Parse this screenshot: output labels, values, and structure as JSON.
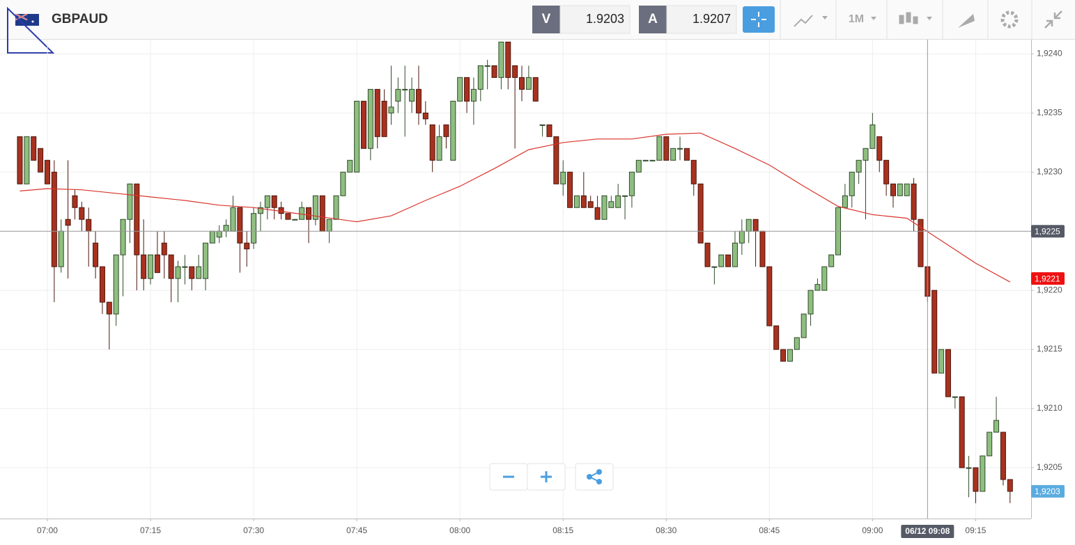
{
  "header": {
    "symbol": "GBPAUD",
    "bid_label": "V",
    "bid": 1.9203,
    "ask_label": "A",
    "ask": 1.9207,
    "timeframe": "1M"
  },
  "chart_data": {
    "type": "candlestick",
    "categories": [
      "06:56",
      "06:57",
      "06:58",
      "06:59",
      "07:00",
      "07:01",
      "07:02",
      "07:03",
      "07:04",
      "07:05",
      "07:06",
      "07:07",
      "07:08",
      "07:09",
      "07:10",
      "07:11",
      "07:12",
      "07:13",
      "07:14",
      "07:15",
      "07:16",
      "07:17",
      "07:18",
      "07:19",
      "07:20",
      "07:21",
      "07:22",
      "07:23",
      "07:24",
      "07:25",
      "07:26",
      "07:27",
      "07:28",
      "07:29",
      "07:30",
      "07:31",
      "07:32",
      "07:33",
      "07:34",
      "07:35",
      "07:36",
      "07:37",
      "07:38",
      "07:39",
      "07:40",
      "07:41",
      "07:42",
      "07:43",
      "07:44",
      "07:45",
      "07:46",
      "07:47",
      "07:48",
      "07:49",
      "07:50",
      "07:51",
      "07:52",
      "07:53",
      "07:54",
      "07:55",
      "07:56",
      "07:57",
      "07:58",
      "07:59",
      "08:00",
      "08:01",
      "08:02",
      "08:03",
      "08:04",
      "08:05",
      "08:06",
      "08:07",
      "08:08",
      "08:09",
      "08:10",
      "08:11",
      "08:12",
      "08:13",
      "08:14",
      "08:15",
      "08:16",
      "08:17",
      "08:18",
      "08:19",
      "08:20",
      "08:21",
      "08:22",
      "08:23",
      "08:24",
      "08:25",
      "08:26",
      "08:27",
      "08:28",
      "08:29",
      "08:30",
      "08:31",
      "08:32",
      "08:33",
      "08:34",
      "08:35",
      "08:36",
      "08:37",
      "08:38",
      "08:39",
      "08:40",
      "08:41",
      "08:42",
      "08:43",
      "08:44",
      "08:45",
      "08:46",
      "08:47",
      "08:48",
      "08:49",
      "08:50",
      "08:51",
      "08:52",
      "08:53",
      "08:54",
      "08:55",
      "08:56",
      "08:57",
      "08:58",
      "08:59",
      "09:00",
      "09:01",
      "09:02",
      "09:03",
      "09:04",
      "09:05",
      "09:06",
      "09:07",
      "09:08",
      "09:09",
      "09:10",
      "09:11",
      "09:12",
      "09:13",
      "09:14",
      "09:15",
      "09:16",
      "09:17",
      "09:18",
      "09:19",
      "09:20"
    ],
    "ohlc": [
      [
        1.9233,
        1.9233,
        1.9229,
        1.9229
      ],
      [
        1.9229,
        1.9233,
        1.9229,
        1.9233
      ],
      [
        1.9233,
        1.9233,
        1.9231,
        1.9231
      ],
      [
        1.9232,
        1.9232,
        1.923,
        1.923
      ],
      [
        1.9231,
        1.9231,
        1.9229,
        1.9229
      ],
      [
        1.923,
        1.9231,
        1.9219,
        1.9222
      ],
      [
        1.9222,
        1.9226,
        1.92215,
        1.9225
      ],
      [
        1.9226,
        1.9231,
        1.9221,
        1.92255
      ],
      [
        1.9228,
        1.92285,
        1.9226,
        1.9227
      ],
      [
        1.9227,
        1.92275,
        1.9225,
        1.9226
      ],
      [
        1.9226,
        1.9227,
        1.9222,
        1.9225
      ],
      [
        1.9224,
        1.9225,
        1.9221,
        1.9222
      ],
      [
        1.9222,
        1.9222,
        1.9218,
        1.9219
      ],
      [
        1.9219,
        1.9219,
        1.9215,
        1.9218
      ],
      [
        1.9218,
        1.9223,
        1.9217,
        1.9223
      ],
      [
        1.9223,
        1.9226,
        1.92195,
        1.9226
      ],
      [
        1.9226,
        1.9229,
        1.9224,
        1.9229
      ],
      [
        1.9229,
        1.9229,
        1.922,
        1.9223
      ],
      [
        1.9223,
        1.9226,
        1.922,
        1.9221
      ],
      [
        1.9221,
        1.9223,
        1.92205,
        1.9223
      ],
      [
        1.9223,
        1.9225,
        1.92215,
        1.92215
      ],
      [
        1.9224,
        1.9225,
        1.9221,
        1.9223
      ],
      [
        1.9223,
        1.9223,
        1.9219,
        1.9221
      ],
      [
        1.9221,
        1.92225,
        1.9219,
        1.9222
      ],
      [
        1.9222,
        1.9223,
        1.92205,
        1.9222
      ],
      [
        1.9222,
        1.9222,
        1.922,
        1.9221
      ],
      [
        1.9221,
        1.9223,
        1.9221,
        1.9222
      ],
      [
        1.9221,
        1.9224,
        1.922,
        1.9224
      ],
      [
        1.9224,
        1.9225,
        1.9224,
        1.9225
      ],
      [
        1.92245,
        1.92255,
        1.9224,
        1.9225
      ],
      [
        1.9225,
        1.9226,
        1.92245,
        1.92255
      ],
      [
        1.9225,
        1.9228,
        1.9225,
        1.9227
      ],
      [
        1.9227,
        1.9227,
        1.92215,
        1.9224
      ],
      [
        1.9224,
        1.9225,
        1.9222,
        1.92235
      ],
      [
        1.9224,
        1.9227,
        1.92235,
        1.92265
      ],
      [
        1.92265,
        1.92275,
        1.9225,
        1.9227
      ],
      [
        1.9227,
        1.9228,
        1.9226,
        1.9228
      ],
      [
        1.9228,
        1.9228,
        1.9226,
        1.9227
      ],
      [
        1.9227,
        1.92275,
        1.9226,
        1.92265
      ],
      [
        1.92265,
        1.92265,
        1.9226,
        1.9226
      ],
      [
        1.9226,
        1.9226,
        1.9226,
        1.9226
      ],
      [
        1.9226,
        1.92275,
        1.9226,
        1.9227
      ],
      [
        1.9227,
        1.9227,
        1.9224,
        1.9226
      ],
      [
        1.9226,
        1.9228,
        1.92255,
        1.9228
      ],
      [
        1.9228,
        1.9228,
        1.9225,
        1.9225
      ],
      [
        1.9225,
        1.9226,
        1.9224,
        1.9226
      ],
      [
        1.9226,
        1.9228,
        1.9226,
        1.9228
      ],
      [
        1.9228,
        1.923,
        1.9228,
        1.923
      ],
      [
        1.923,
        1.9231,
        1.923,
        1.9231
      ],
      [
        1.923,
        1.9236,
        1.923,
        1.9236
      ],
      [
        1.9236,
        1.9236,
        1.9232,
        1.9232
      ],
      [
        1.9232,
        1.9237,
        1.9231,
        1.9237
      ],
      [
        1.9237,
        1.9237,
        1.9232,
        1.9233
      ],
      [
        1.9236,
        1.9237,
        1.9233,
        1.9233
      ],
      [
        1.9235,
        1.9239,
        1.9234,
        1.92355
      ],
      [
        1.9236,
        1.9238,
        1.9235,
        1.9237
      ],
      [
        1.9237,
        1.9239,
        1.9233,
        1.9237
      ],
      [
        1.9236,
        1.9238,
        1.9235,
        1.9237
      ],
      [
        1.9237,
        1.9239,
        1.9234,
        1.9235
      ],
      [
        1.9235,
        1.9236,
        1.9234,
        1.92345
      ],
      [
        1.9234,
        1.9234,
        1.923,
        1.9231
      ],
      [
        1.9231,
        1.9234,
        1.9231,
        1.9233
      ],
      [
        1.9234,
        1.9234,
        1.9232,
        1.9233
      ],
      [
        1.9231,
        1.9236,
        1.9231,
        1.9236
      ],
      [
        1.9236,
        1.9238,
        1.9236,
        1.9238
      ],
      [
        1.9238,
        1.9238,
        1.9235,
        1.9236
      ],
      [
        1.9236,
        1.9238,
        1.9234,
        1.9237
      ],
      [
        1.9237,
        1.9239,
        1.9236,
        1.9239
      ],
      [
        1.9239,
        1.92395,
        1.9237,
        1.9239
      ],
      [
        1.9239,
        1.9239,
        1.9238,
        1.9238
      ],
      [
        1.9238,
        1.9241,
        1.9237,
        1.9241
      ],
      [
        1.9241,
        1.9241,
        1.9237,
        1.9238
      ],
      [
        1.9239,
        1.9239,
        1.9232,
        1.9238
      ],
      [
        1.9238,
        1.9239,
        1.9236,
        1.9237
      ],
      [
        1.9237,
        1.9239,
        1.9237,
        1.9238
      ],
      [
        1.9238,
        1.9238,
        1.9236,
        1.9236
      ],
      [
        1.9234,
        1.9234,
        1.9233,
        1.9234
      ],
      [
        1.9234,
        1.9234,
        1.9233,
        1.9233
      ],
      [
        1.9233,
        1.9233,
        1.9229,
        1.9229
      ],
      [
        1.9229,
        1.9231,
        1.9228,
        1.923
      ],
      [
        1.923,
        1.923,
        1.9227,
        1.9227
      ],
      [
        1.9227,
        1.9228,
        1.9227,
        1.9228
      ],
      [
        1.9228,
        1.923,
        1.9227,
        1.9227
      ],
      [
        1.92275,
        1.9228,
        1.9227,
        1.9227
      ],
      [
        1.9227,
        1.9228,
        1.9226,
        1.9226
      ],
      [
        1.9226,
        1.9228,
        1.9226,
        1.9228
      ],
      [
        1.9227,
        1.9228,
        1.9227,
        1.92275
      ],
      [
        1.9227,
        1.9229,
        1.9227,
        1.9228
      ],
      [
        1.9228,
        1.9228,
        1.9226,
        1.9228
      ],
      [
        1.9228,
        1.923,
        1.9227,
        1.923
      ],
      [
        1.923,
        1.9231,
        1.923,
        1.9231
      ],
      [
        1.9231,
        1.9231,
        1.9231,
        1.9231
      ],
      [
        1.9231,
        1.9231,
        1.9231,
        1.9231
      ],
      [
        1.9231,
        1.9233,
        1.9231,
        1.9233
      ],
      [
        1.9233,
        1.9233,
        1.9231,
        1.9231
      ],
      [
        1.9231,
        1.9232,
        1.9231,
        1.9232
      ],
      [
        1.9232,
        1.9233,
        1.9231,
        1.9232
      ],
      [
        1.9232,
        1.9232,
        1.9231,
        1.9231
      ],
      [
        1.9231,
        1.9231,
        1.9228,
        1.9229
      ],
      [
        1.9229,
        1.9229,
        1.9224,
        1.9224
      ],
      [
        1.9224,
        1.9224,
        1.9222,
        1.9222
      ],
      [
        1.9222,
        1.9222,
        1.92205,
        1.9222
      ],
      [
        1.9222,
        1.9223,
        1.9222,
        1.9223
      ],
      [
        1.9223,
        1.9223,
        1.9222,
        1.9222
      ],
      [
        1.9222,
        1.9225,
        1.9222,
        1.9224
      ],
      [
        1.9224,
        1.9226,
        1.9223,
        1.9225
      ],
      [
        1.9225,
        1.9226,
        1.9224,
        1.9226
      ],
      [
        1.9226,
        1.9226,
        1.9222,
        1.9225
      ],
      [
        1.9225,
        1.9225,
        1.9222,
        1.9222
      ],
      [
        1.9222,
        1.9222,
        1.9217,
        1.9217
      ],
      [
        1.9217,
        1.9217,
        1.9215,
        1.9215
      ],
      [
        1.9215,
        1.9215,
        1.9214,
        1.9214
      ],
      [
        1.9214,
        1.9215,
        1.9214,
        1.9215
      ],
      [
        1.9215,
        1.9216,
        1.9215,
        1.9216
      ],
      [
        1.9216,
        1.9218,
        1.9216,
        1.9218
      ],
      [
        1.9218,
        1.922,
        1.9217,
        1.922
      ],
      [
        1.922,
        1.9221,
        1.922,
        1.92205
      ],
      [
        1.922,
        1.9222,
        1.922,
        1.9222
      ],
      [
        1.9222,
        1.9223,
        1.9222,
        1.9223
      ],
      [
        1.9223,
        1.9227,
        1.9223,
        1.9227
      ],
      [
        1.9227,
        1.9229,
        1.9227,
        1.9228
      ],
      [
        1.9228,
        1.923,
        1.9227,
        1.923
      ],
      [
        1.923,
        1.9231,
        1.9229,
        1.9231
      ],
      [
        1.9231,
        1.9232,
        1.9226,
        1.9232
      ],
      [
        1.9232,
        1.9235,
        1.9232,
        1.9234
      ],
      [
        1.9233,
        1.9233,
        1.923,
        1.9231
      ],
      [
        1.9231,
        1.9231,
        1.9228,
        1.9229
      ],
      [
        1.9229,
        1.9229,
        1.9227,
        1.9228
      ],
      [
        1.9228,
        1.9229,
        1.9228,
        1.9229
      ],
      [
        1.9228,
        1.9229,
        1.9228,
        1.9229
      ],
      [
        1.9229,
        1.92295,
        1.9225,
        1.9226
      ],
      [
        1.9226,
        1.9226,
        1.9222,
        1.9222
      ],
      [
        1.9222,
        1.9222,
        1.9219,
        1.92195
      ],
      [
        1.922,
        1.922,
        1.9213,
        1.9213
      ],
      [
        1.9213,
        1.9215,
        1.9213,
        1.9215
      ],
      [
        1.9215,
        1.9215,
        1.9211,
        1.9211
      ],
      [
        1.9211,
        1.9211,
        1.921,
        1.9211
      ],
      [
        1.9211,
        1.9211,
        1.9205,
        1.9205
      ],
      [
        1.9205,
        1.9206,
        1.92025,
        1.9205
      ],
      [
        1.9205,
        1.9205,
        1.9202,
        1.9203
      ],
      [
        1.9203,
        1.9206,
        1.9203,
        1.9206
      ],
      [
        1.9206,
        1.9208,
        1.9206,
        1.9208
      ],
      [
        1.9208,
        1.9211,
        1.9208,
        1.9209
      ],
      [
        1.9208,
        1.9208,
        1.92035,
        1.9204
      ],
      [
        1.9204,
        1.9204,
        1.9202,
        1.9203
      ]
    ],
    "up_color": "#8fbf80",
    "down_color": "#a8321f",
    "ma": {
      "color": "#d9342b",
      "x": [
        "06:56",
        "07:00",
        "07:05",
        "07:10",
        "07:15",
        "07:20",
        "07:25",
        "07:30",
        "07:35",
        "07:40",
        "07:45",
        "07:50",
        "07:55",
        "08:00",
        "08:05",
        "08:10",
        "08:15",
        "08:20",
        "08:25",
        "08:30",
        "08:35",
        "08:40",
        "08:45",
        "08:50",
        "08:55",
        "09:00",
        "09:05",
        "09:10",
        "09:15",
        "09:20"
      ],
      "values": [
        1.92284,
        1.92286,
        1.92285,
        1.92282,
        1.92279,
        1.92276,
        1.92272,
        1.9227,
        1.92266,
        1.92262,
        1.92258,
        1.92263,
        1.92276,
        1.92288,
        1.92303,
        1.92319,
        1.92325,
        1.92328,
        1.92328,
        1.92332,
        1.92333,
        1.9232,
        1.92306,
        1.92288,
        1.92271,
        1.92264,
        1.92261,
        1.92242,
        1.92223,
        1.92207
      ]
    },
    "ylim": [
      1.92007,
      1.92412
    ],
    "yticks": [
      {
        "value": 1.9205,
        "label": "1,9205"
      },
      {
        "value": 1.921,
        "label": "1,9210"
      },
      {
        "value": 1.9215,
        "label": "1,9215"
      },
      {
        "value": 1.922,
        "label": "1,9220"
      },
      {
        "value": 1.9225,
        "label": "1,9225"
      },
      {
        "value": 1.923,
        "label": "1,9230"
      },
      {
        "value": 1.9235,
        "label": "1,9235"
      },
      {
        "value": 1.924,
        "label": "1,9240"
      }
    ],
    "xticks": [
      "07:00",
      "07:15",
      "07:30",
      "07:45",
      "08:00",
      "08:15",
      "08:30",
      "08:45",
      "09:00",
      "09:15"
    ],
    "grid": true,
    "crosshair": {
      "value": 1.9225,
      "label": "1,9225",
      "time_label": "06/12 09:08"
    },
    "ma_marker": {
      "value": 1.9221,
      "label": "1,9221",
      "color": "#ee1111"
    },
    "last_marker": {
      "value": 1.9203,
      "label": "1,9203",
      "color": "#5aace0"
    }
  }
}
